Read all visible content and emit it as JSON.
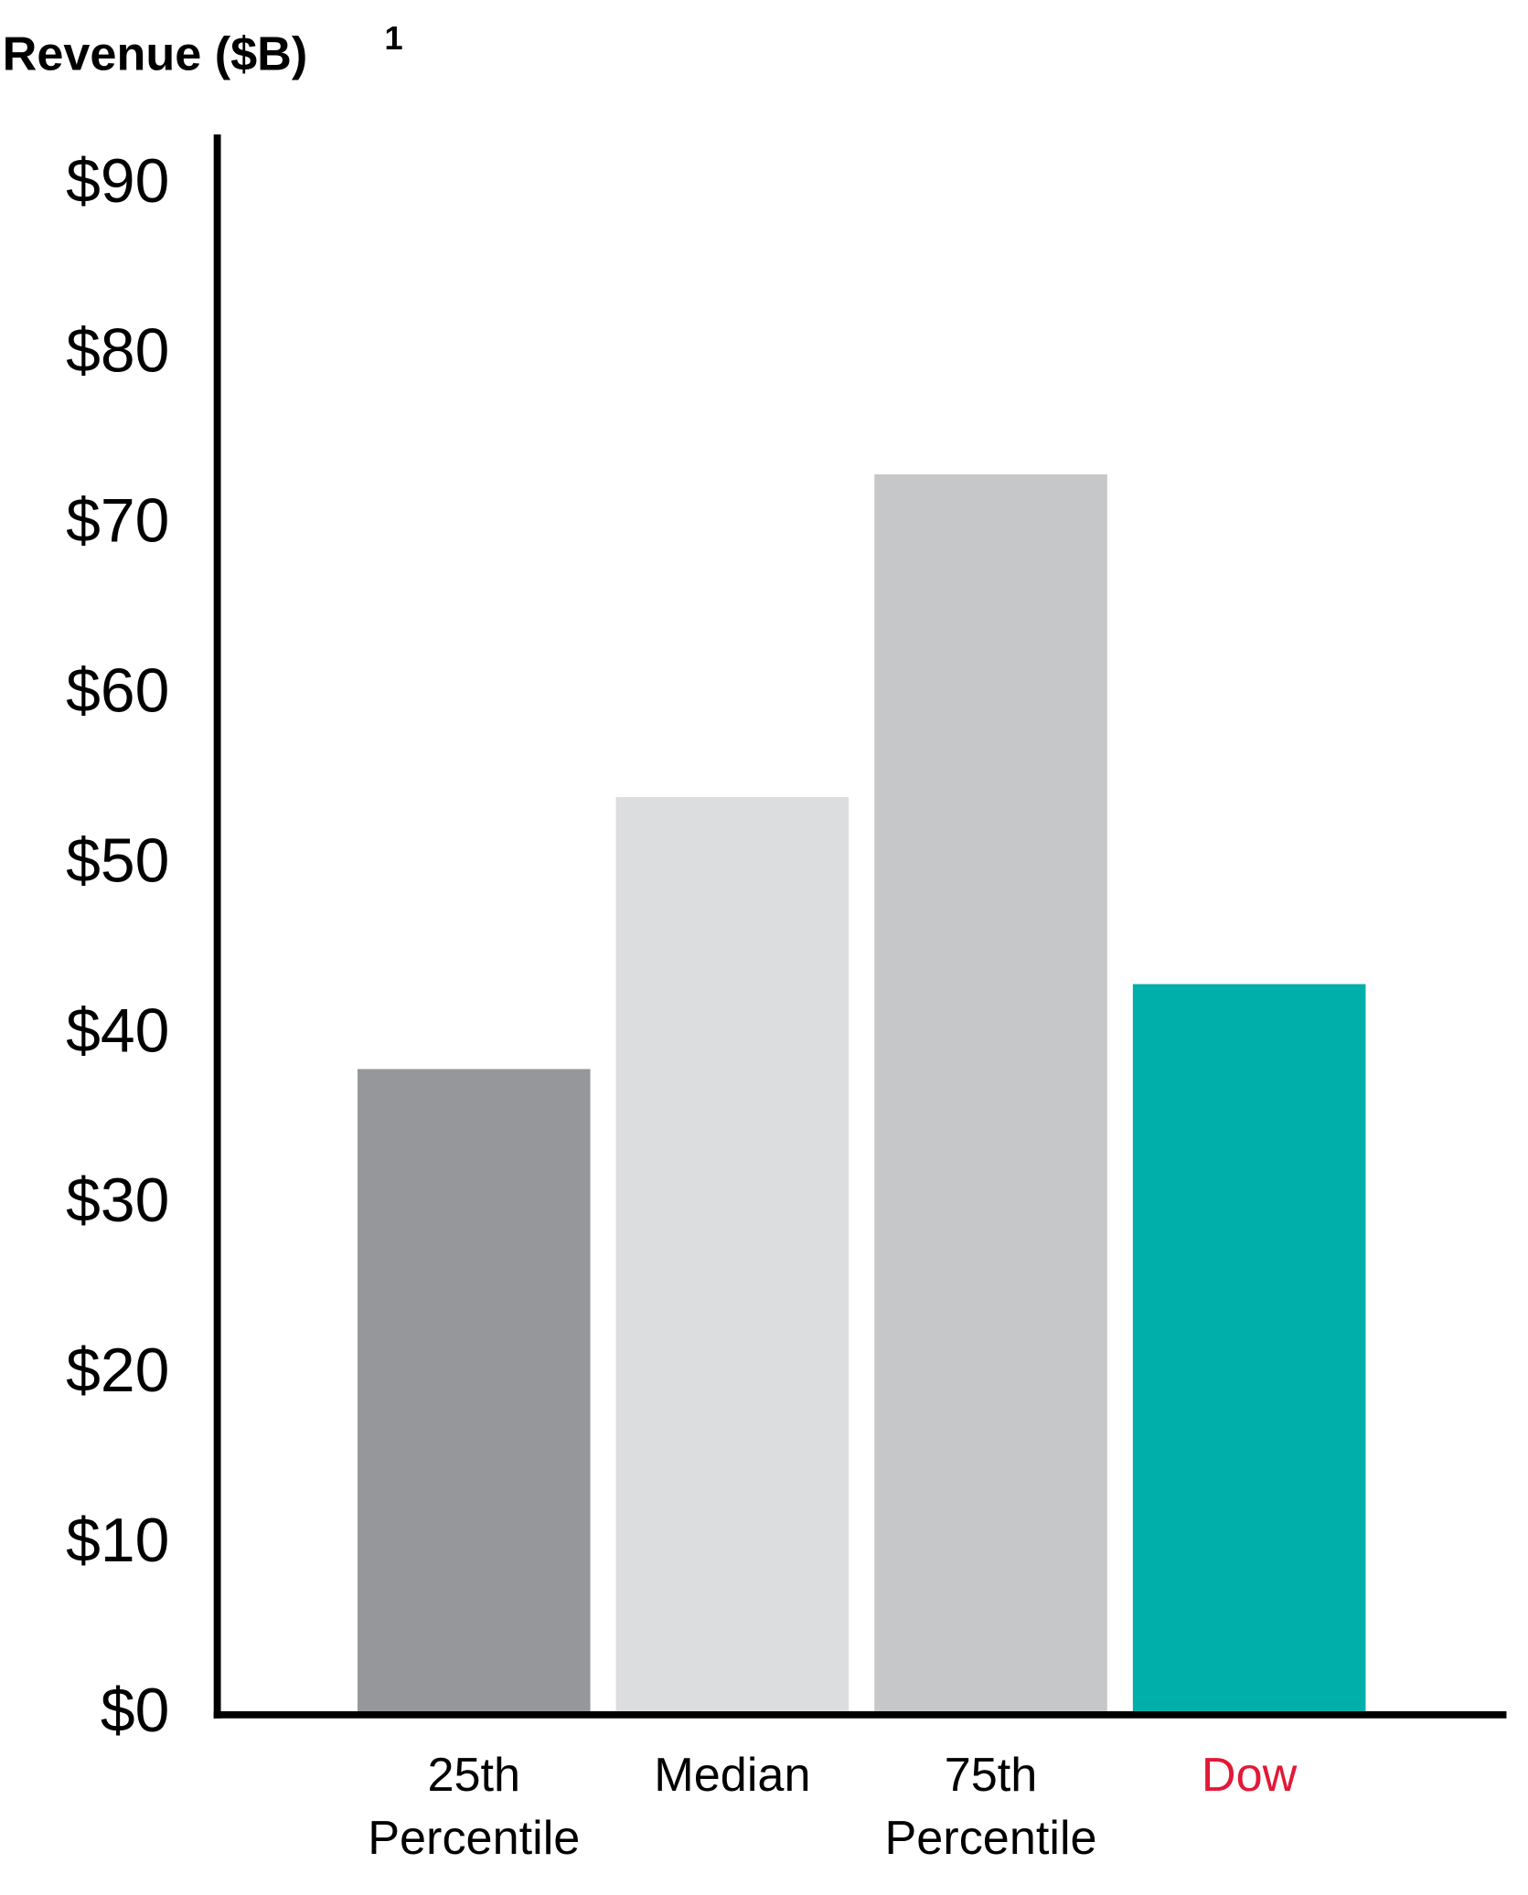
{
  "chart_data": {
    "type": "bar",
    "title": "Revenue ($B)",
    "title_footnote": "1",
    "categories": [
      [
        "25th",
        "Percentile"
      ],
      [
        "Median"
      ],
      [
        "75th",
        "Percentile"
      ],
      [
        "Dow"
      ]
    ],
    "values": [
      38,
      54,
      73,
      43
    ],
    "colors": [
      "#96979a",
      "#dcdddf",
      "#c6c7c9",
      "#00afa9"
    ],
    "label_colors": [
      "#000000",
      "#000000",
      "#000000",
      "#e31837"
    ],
    "ylim": [
      0,
      93
    ],
    "yticks": [
      {
        "value": 0,
        "label": "$0"
      },
      {
        "value": 10,
        "label": "$10"
      },
      {
        "value": 20,
        "label": "$20"
      },
      {
        "value": 30,
        "label": "$30"
      },
      {
        "value": 40,
        "label": "$40"
      },
      {
        "value": 50,
        "label": "$50"
      },
      {
        "value": 60,
        "label": "$60"
      },
      {
        "value": 70,
        "label": "$70"
      },
      {
        "value": 80,
        "label": "$80"
      },
      {
        "value": 90,
        "label": "$90"
      }
    ],
    "grid": false
  }
}
